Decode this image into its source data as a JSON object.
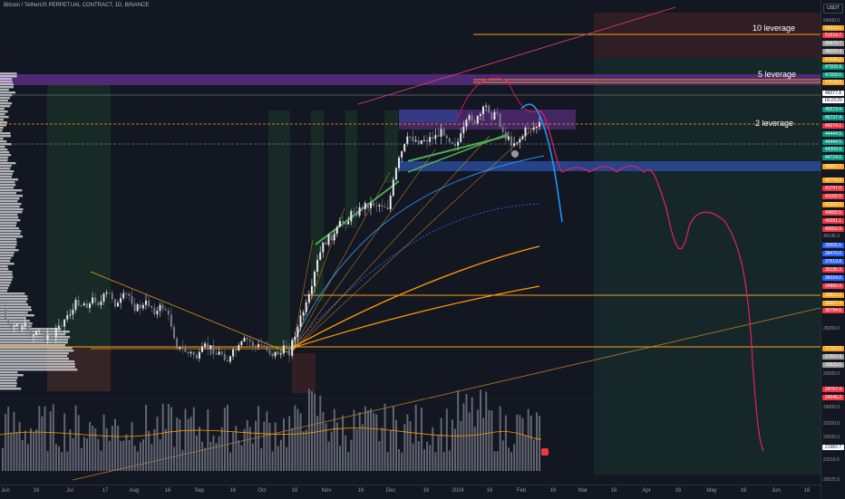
{
  "header": {
    "title": "Bitcoin / TetherUS PERPETUAL CONTRACT, 1D, BINANCE"
  },
  "currency": "USDT",
  "annotations": [
    {
      "label": "10 leverage",
      "price": 52215.1,
      "color": "#f7a21b"
    },
    {
      "label": "5 leverage",
      "price": 48050.0,
      "color": "#f7a21b"
    },
    {
      "label": "2 leverage",
      "price": 45650.0,
      "color": "#f7a21b"
    }
  ],
  "price_scale": {
    "top": "54000.0",
    "ticks": [
      "40196.3",
      "28200.0",
      "25600.0",
      "24000.0",
      "23200.0",
      "22500.0",
      "21150.0",
      "20525.5"
    ],
    "labels": [
      {
        "text": "52215.1",
        "bg": "#f7a21b"
      },
      {
        "text": "51918.2",
        "bg": "#f23645"
      },
      {
        "text": "49975.7",
        "bg": "#9e9e9e"
      },
      {
        "text": "48209.4",
        "bg": "#9e9e9e"
      },
      {
        "text": "47636.2",
        "bg": "#f7a21b"
      },
      {
        "text": "47309.9",
        "bg": "#089981"
      },
      {
        "text": "47209.5",
        "bg": "#089981"
      },
      {
        "text": "47039.8",
        "bg": "#f7a21b"
      },
      {
        "text": "46077.8",
        "bg": "#ffffff",
        "fg": "#131722"
      },
      {
        "text": "18:23:29",
        "bg": "#ffffff",
        "fg": "#131722"
      },
      {
        "text": "45573.4",
        "bg": "#089981"
      },
      {
        "text": "45737.4",
        "bg": "#089981"
      },
      {
        "text": "44274.1",
        "bg": "#f23645"
      },
      {
        "text": "44444.5",
        "bg": "#089981"
      },
      {
        "text": "44444.5",
        "bg": "#089981"
      },
      {
        "text": "44309.9",
        "bg": "#089981"
      },
      {
        "text": "44724.0",
        "bg": "#089981"
      },
      {
        "text": "43967.7",
        "bg": "#f7a21b"
      },
      {
        "text": "42773.3",
        "bg": "#f7a21b"
      },
      {
        "text": "41747.0",
        "bg": "#f23645"
      },
      {
        "text": "41183.9",
        "bg": "#f23645"
      },
      {
        "text": "41392.0",
        "bg": "#f7a21b"
      },
      {
        "text": "40655.5",
        "bg": "#f23645"
      },
      {
        "text": "40291.1",
        "bg": "#f23645"
      },
      {
        "text": "40052.9",
        "bg": "#f23645"
      },
      {
        "text": "39505.5",
        "bg": "#2962ff"
      },
      {
        "text": "38470.0",
        "bg": "#2962ff"
      },
      {
        "text": "37619.8",
        "bg": "#2962ff"
      },
      {
        "text": "35195.2",
        "bg": "#f23645"
      },
      {
        "text": "36034.0",
        "bg": "#2962ff"
      },
      {
        "text": "34880.9",
        "bg": "#f23645"
      },
      {
        "text": "30821.0",
        "bg": "#f7a21b"
      },
      {
        "text": "30327.4",
        "bg": "#f7a21b"
      },
      {
        "text": "30794.6",
        "bg": "#f23645"
      },
      {
        "text": "27110.3",
        "bg": "#f7a21b"
      },
      {
        "text": "27037.4",
        "bg": "#9e9e9e"
      },
      {
        "text": "26825.6",
        "bg": "#9e9e9e"
      },
      {
        "text": "24767.4",
        "bg": "#f23645"
      },
      {
        "text": "24646.3",
        "bg": "#f23645"
      },
      {
        "text": "21982.7",
        "bg": "#ffffff",
        "fg": "#131722"
      }
    ]
  },
  "time_axis": [
    "Jun",
    "16",
    "Jul",
    "17",
    "Aug",
    "16",
    "Sep",
    "16",
    "Oct",
    "16",
    "Nov",
    "16",
    "Dec",
    "16",
    "2024",
    "16",
    "Feb",
    "16",
    "Mar",
    "16",
    "Apr",
    "16",
    "May",
    "16",
    "Jun",
    "16"
  ]
}
